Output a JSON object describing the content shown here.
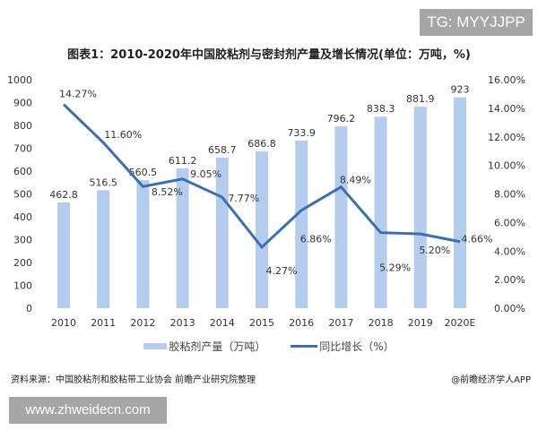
{
  "watermark_top": "TG: MYYJJPP",
  "watermark_bottom": "www.zhweidecn.com",
  "footer": {
    "source": "资料来源：中国胶粘剂和胶粘带工业协会 前瞻产业研究院整理",
    "credit": "@前瞻经济学人APP"
  },
  "chart_data": {
    "type": "bar+line",
    "title": "图表1：2010-2020年中国胶粘剂与密封剂产量及增长情况(单位：万吨，%)",
    "categories": [
      "2010",
      "2011",
      "2012",
      "2013",
      "2014",
      "2015",
      "2016",
      "2017",
      "2018",
      "2019",
      "2020E"
    ],
    "series": [
      {
        "name": "胶粘剂产量（万吨）",
        "type": "bar",
        "axis": "left",
        "color": "#b4cdef",
        "values": [
          462.8,
          516.5,
          560.5,
          611.2,
          658.7,
          686.8,
          733.9,
          796.2,
          838.3,
          881.9,
          923
        ],
        "labels": [
          "462.8",
          "516.5",
          "560.5",
          "611.2",
          "658.7",
          "686.8",
          "733.9",
          "796.2",
          "838.3",
          "881.9",
          "923"
        ]
      },
      {
        "name": "同比增长（%）",
        "type": "line",
        "axis": "right",
        "color": "#3b6fb0",
        "values": [
          14.27,
          11.6,
          8.52,
          9.05,
          7.77,
          4.27,
          6.86,
          8.49,
          5.29,
          5.2,
          4.66
        ],
        "labels": [
          "14.27%",
          "11.60%",
          "8.52%",
          "9.05%",
          "7.77%",
          "4.27%",
          "6.86%",
          "8.49%",
          "5.29%",
          "5.20%",
          "4.66%"
        ]
      }
    ],
    "left_axis": {
      "range": [
        0,
        1000
      ],
      "ticks": [
        "0",
        "100",
        "200",
        "300",
        "400",
        "500",
        "600",
        "700",
        "800",
        "900",
        "1000"
      ]
    },
    "right_axis": {
      "range": [
        0,
        16
      ],
      "ticks": [
        "0.00%",
        "2.00%",
        "4.00%",
        "6.00%",
        "8.00%",
        "10.00%",
        "12.00%",
        "14.00%",
        "16.00%"
      ]
    },
    "grid": false,
    "legend": "bottom"
  }
}
